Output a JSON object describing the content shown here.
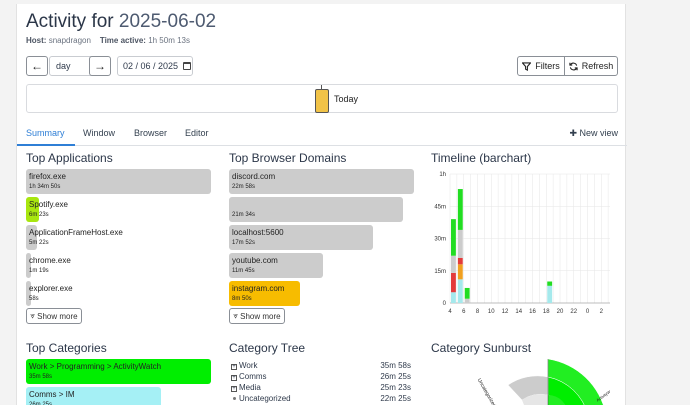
{
  "header": {
    "title_prefix": "Activity for ",
    "title_date": "2025-06-02",
    "host_label": "Host:",
    "host_value": "snapdragon",
    "active_label": "Time active:",
    "active_value": "1h 50m 13s"
  },
  "controls": {
    "prev_glyph": "←",
    "next_glyph": "→",
    "period": "day",
    "date": "02 / 06 / 2025",
    "filters_label": "Filters",
    "refresh_label": "Refresh"
  },
  "timeline": {
    "today_label": "Today"
  },
  "tabs": [
    {
      "label": "Summary"
    },
    {
      "label": "Window"
    },
    {
      "label": "Browser"
    },
    {
      "label": "Editor"
    }
  ],
  "new_view_label": "New view",
  "top_applications": {
    "heading": "Top Applications",
    "items": [
      {
        "name": "firefox.exe",
        "time": "1h 34m 50s",
        "fraction": 1.0,
        "color": "#cccccc"
      },
      {
        "name": "Spotify.exe",
        "time": "6m 23s",
        "fraction": 0.068,
        "color": "#a8e60f"
      },
      {
        "name": "ApplicationFrameHost.exe",
        "time": "5m 22s",
        "fraction": 0.057,
        "color": "#cccccc"
      },
      {
        "name": "chrome.exe",
        "time": "1m 19s",
        "fraction": 0.014,
        "color": "#cccccc"
      },
      {
        "name": "explorer.exe",
        "time": "58s",
        "fraction": 0.01,
        "color": "#cccccc"
      }
    ],
    "show_more": "Show more"
  },
  "top_domains": {
    "heading": "Top Browser Domains",
    "items": [
      {
        "name": "discord.com",
        "time": "22m 58s",
        "fraction": 1.0,
        "color": "#cccccc"
      },
      {
        "name": "",
        "time": "21m 34s",
        "fraction": 0.94,
        "color": "#cccccc"
      },
      {
        "name": "localhost:5600",
        "time": "17m 52s",
        "fraction": 0.78,
        "color": "#cccccc"
      },
      {
        "name": "youtube.com",
        "time": "11m 45s",
        "fraction": 0.51,
        "color": "#cccccc"
      },
      {
        "name": "instagram.com",
        "time": "8m 50s",
        "fraction": 0.385,
        "color": "#f7bc00"
      }
    ],
    "show_more": "Show more"
  },
  "timeline_chart": {
    "heading": "Timeline (barchart)",
    "chart_data": {
      "type": "bar",
      "y_ticks": [
        "0",
        "15m",
        "30m",
        "45m",
        "1h"
      ],
      "x_ticks": [
        "4",
        "6",
        "8",
        "10",
        "12",
        "14",
        "16",
        "18",
        "20",
        "22",
        "0",
        "2"
      ],
      "ylim": [
        0,
        60
      ],
      "bars": [
        {
          "hour": 4,
          "segments": [
            {
              "value": 5,
              "color": "#a5e9ec"
            },
            {
              "value": 9,
              "color": "#e33b3b"
            },
            {
              "value": 8,
              "color": "#cccccc"
            },
            {
              "value": 17,
              "color": "#22dd22"
            }
          ]
        },
        {
          "hour": 5,
          "segments": [
            {
              "value": 11,
              "color": "#a5e9ec"
            },
            {
              "value": 7,
              "color": "#f0a020"
            },
            {
              "value": 3,
              "color": "#e33b3b"
            },
            {
              "value": 13,
              "color": "#cccccc"
            },
            {
              "value": 19,
              "color": "#22dd22"
            }
          ]
        },
        {
          "hour": 6,
          "segments": [
            {
              "value": 2,
              "color": "#cccccc"
            },
            {
              "value": 5,
              "color": "#22dd22"
            }
          ]
        },
        {
          "hour": 18,
          "segments": [
            {
              "value": 8,
              "color": "#a5e9ec"
            },
            {
              "value": 2,
              "color": "#22dd22"
            }
          ]
        }
      ]
    }
  },
  "top_categories": {
    "heading": "Top Categories",
    "items": [
      {
        "name": "Work > Programming > ActivityWatch",
        "time": "35m 58s",
        "fraction": 1.0,
        "color": "#00ee00"
      },
      {
        "name": "Comms > IM",
        "time": "26m 25s",
        "fraction": 0.73,
        "color": "#a5f0f5"
      }
    ]
  },
  "category_tree": {
    "heading": "Category Tree",
    "items": [
      {
        "name": "Work",
        "time": "35m 58s",
        "kind": "plus"
      },
      {
        "name": "Comms",
        "time": "26m 25s",
        "kind": "plus"
      },
      {
        "name": "Media",
        "time": "25m 23s",
        "kind": "plus"
      },
      {
        "name": "Uncategorized",
        "time": "22m 25s",
        "kind": "dot"
      }
    ]
  },
  "sunburst": {
    "heading": "Category Sunburst",
    "labels": [
      "Uncategorized",
      "ActivityWatch"
    ]
  }
}
